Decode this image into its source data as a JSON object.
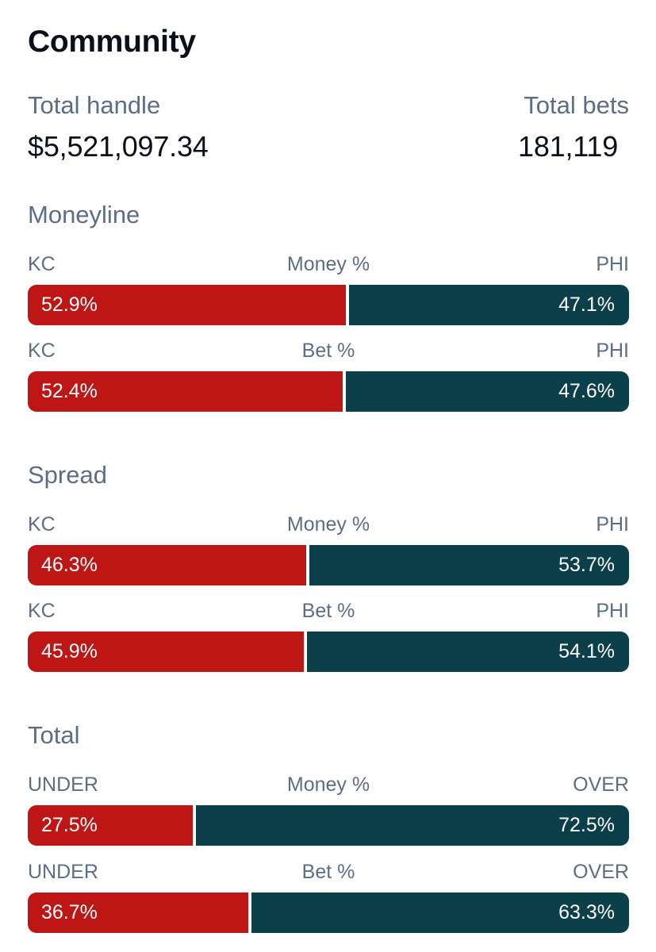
{
  "title": "Community",
  "summary": {
    "handle_label": "Total handle",
    "handle_value": "$5,521,097.34",
    "bets_label": "Total bets",
    "bets_value": "181,119"
  },
  "colors": {
    "left_team": "#be1515",
    "right_team": "#0b3f4a"
  },
  "sections": [
    {
      "title": "Moneyline",
      "rows": [
        {
          "left_label": "KC",
          "metric": "Money %",
          "right_label": "PHI",
          "left_pct": 52.9,
          "left_text": "52.9%",
          "right_text": "47.1%"
        },
        {
          "left_label": "KC",
          "metric": "Bet %",
          "right_label": "PHI",
          "left_pct": 52.4,
          "left_text": "52.4%",
          "right_text": "47.6%"
        }
      ]
    },
    {
      "title": "Spread",
      "rows": [
        {
          "left_label": "KC",
          "metric": "Money %",
          "right_label": "PHI",
          "left_pct": 46.3,
          "left_text": "46.3%",
          "right_text": "53.7%"
        },
        {
          "left_label": "KC",
          "metric": "Bet %",
          "right_label": "PHI",
          "left_pct": 45.9,
          "left_text": "45.9%",
          "right_text": "54.1%"
        }
      ]
    },
    {
      "title": "Total",
      "rows": [
        {
          "left_label": "UNDER",
          "metric": "Money %",
          "right_label": "OVER",
          "left_pct": 27.5,
          "left_text": "27.5%",
          "right_text": "72.5%"
        },
        {
          "left_label": "UNDER",
          "metric": "Bet %",
          "right_label": "OVER",
          "left_pct": 36.7,
          "left_text": "36.7%",
          "right_text": "63.3%"
        }
      ]
    }
  ]
}
